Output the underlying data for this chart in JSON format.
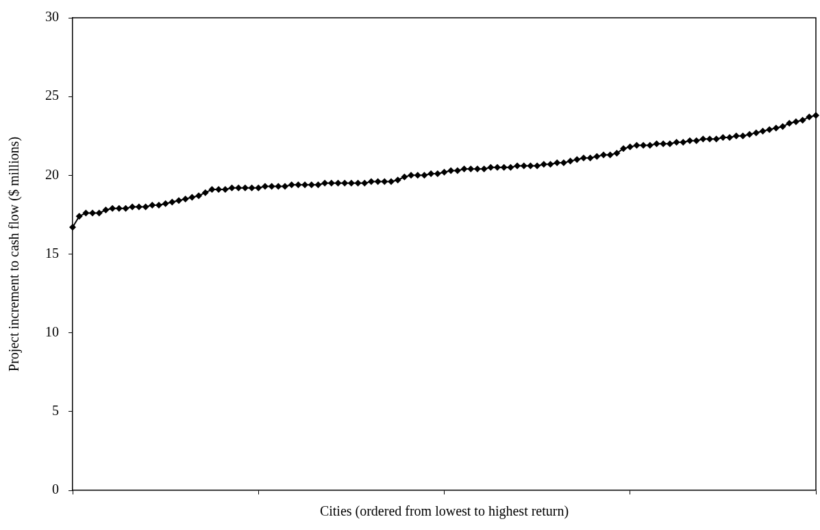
{
  "chart_data": {
    "type": "line",
    "xlabel": "Cities (ordered from lowest to highest return)",
    "ylabel": "Project increment to cash flow ($ millions)",
    "categories": [
      null,
      null,
      null,
      null,
      null,
      null,
      null,
      null,
      null,
      null,
      null,
      null,
      null,
      null,
      null,
      null,
      null,
      null,
      null,
      null,
      null,
      null,
      null,
      null,
      null,
      null,
      null,
      null,
      null,
      null,
      null,
      null,
      null,
      null,
      null,
      null,
      null,
      null,
      null,
      null,
      null,
      null,
      null,
      null,
      null,
      null,
      null,
      null,
      null,
      null,
      null,
      null,
      null,
      null,
      null,
      null,
      null,
      null,
      null,
      null,
      null,
      null,
      null,
      null,
      null,
      null,
      null,
      null,
      null,
      null,
      null,
      null,
      null,
      null,
      null,
      null,
      null,
      null,
      null,
      null,
      null,
      null,
      null,
      null,
      null,
      null,
      null,
      null,
      null,
      null,
      null,
      null,
      null,
      null,
      null,
      null,
      null,
      null,
      null,
      null,
      null,
      null,
      null,
      null,
      null,
      null,
      null,
      null,
      null,
      null,
      null,
      null,
      null
    ],
    "values": [
      16.7,
      17.4,
      17.6,
      17.6,
      17.6,
      17.8,
      17.9,
      17.9,
      17.9,
      18.0,
      18.0,
      18.0,
      18.1,
      18.1,
      18.2,
      18.3,
      18.4,
      18.5,
      18.6,
      18.7,
      18.9,
      19.1,
      19.1,
      19.1,
      19.2,
      19.2,
      19.2,
      19.2,
      19.2,
      19.3,
      19.3,
      19.3,
      19.3,
      19.4,
      19.4,
      19.4,
      19.4,
      19.4,
      19.5,
      19.5,
      19.5,
      19.5,
      19.5,
      19.5,
      19.5,
      19.6,
      19.6,
      19.6,
      19.6,
      19.7,
      19.9,
      20.0,
      20.0,
      20.0,
      20.1,
      20.1,
      20.2,
      20.3,
      20.3,
      20.4,
      20.4,
      20.4,
      20.4,
      20.5,
      20.5,
      20.5,
      20.5,
      20.6,
      20.6,
      20.6,
      20.6,
      20.7,
      20.7,
      20.8,
      20.8,
      20.9,
      21.0,
      21.1,
      21.1,
      21.2,
      21.3,
      21.3,
      21.4,
      21.7,
      21.8,
      21.9,
      21.9,
      21.9,
      22.0,
      22.0,
      22.0,
      22.1,
      22.1,
      22.2,
      22.2,
      22.3,
      22.3,
      22.3,
      22.4,
      22.4,
      22.5,
      22.5,
      22.6,
      22.7,
      22.8,
      22.9,
      23.0,
      23.1,
      23.3,
      23.4,
      23.5,
      23.7,
      23.8
    ],
    "color": "#000000",
    "ylim": [
      0,
      30
    ],
    "yticks": [
      0,
      5,
      10,
      15,
      20,
      25,
      30
    ],
    "grid": false,
    "marker": "diamond",
    "line_style": "solid",
    "tick_labels": "y",
    "legend": false
  }
}
